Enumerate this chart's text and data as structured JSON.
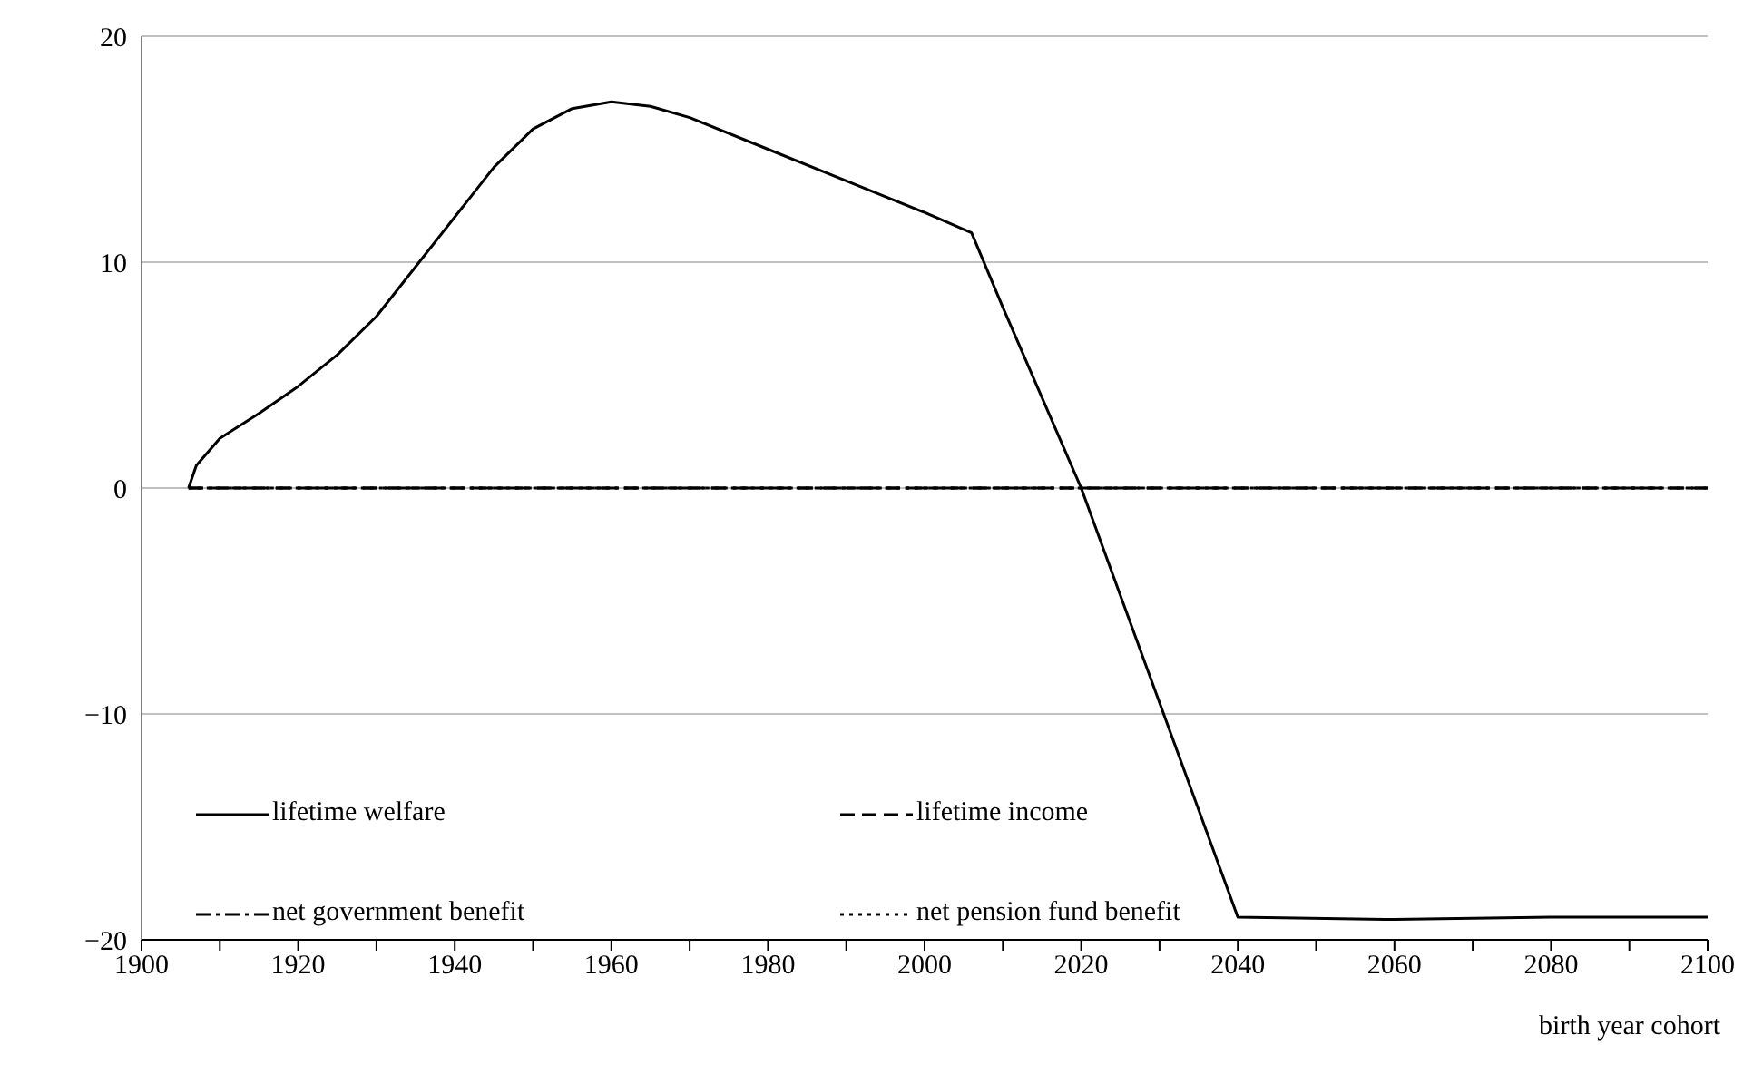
{
  "chart_data": {
    "type": "line",
    "xlabel": "birth year cohort",
    "xlim": [
      1900,
      2100
    ],
    "xticks": [
      1900,
      {
        "value": 1910,
        "label": null
      },
      1920,
      {
        "value": 1930,
        "label": null
      },
      1940,
      {
        "value": 1950,
        "label": null
      },
      1960,
      {
        "value": 1970,
        "label": null
      },
      1980,
      {
        "value": 1990,
        "label": null
      },
      2000,
      {
        "value": 2010,
        "label": null
      },
      2020,
      {
        "value": 2030,
        "label": null
      },
      2040,
      {
        "value": 2050,
        "label": null
      },
      2060,
      {
        "value": 2070,
        "label": null
      },
      2080,
      {
        "value": 2090,
        "label": null
      },
      2100
    ],
    "ylim": [
      -20,
      20
    ],
    "yticks": [
      {
        "value": -20,
        "label": "−20"
      },
      {
        "value": -10,
        "label": "−10"
      },
      0,
      10,
      20
    ],
    "grid": "y",
    "legend": "bottom left",
    "series": [
      {
        "name": "lifetime welfare",
        "color": "#000000",
        "line_style": "solid",
        "x": [
          1906,
          1907,
          1910,
          1915,
          1920,
          1925,
          1930,
          1935,
          1940,
          1945,
          1950,
          1955,
          1960,
          1965,
          1970,
          1980,
          1990,
          2000,
          2006,
          2010,
          2020,
          2030,
          2040,
          2060,
          2080,
          2100
        ],
        "values": [
          0,
          1,
          2.2,
          3.3,
          4.5,
          5.9,
          7.6,
          9.8,
          12,
          14.2,
          15.9,
          16.8,
          17.1,
          16.9,
          16.4,
          15,
          13.6,
          12.2,
          11.3,
          8,
          0,
          -9.5,
          -19,
          -19.1,
          -19,
          -19
        ]
      },
      {
        "name": "lifetime income",
        "color": "#000000",
        "line_style": "dashed",
        "x": [
          1906,
          2100
        ],
        "values": [
          0,
          0
        ]
      },
      {
        "name": "net government benefit",
        "color": "#000000",
        "line_style": "dashdot",
        "x": [
          1906,
          2100
        ],
        "values": [
          0,
          0
        ]
      },
      {
        "name": "net pension fund benefit",
        "color": "#000000",
        "line_style": "dotted",
        "x": [
          1906,
          2100
        ],
        "values": [
          0,
          0
        ]
      }
    ]
  }
}
